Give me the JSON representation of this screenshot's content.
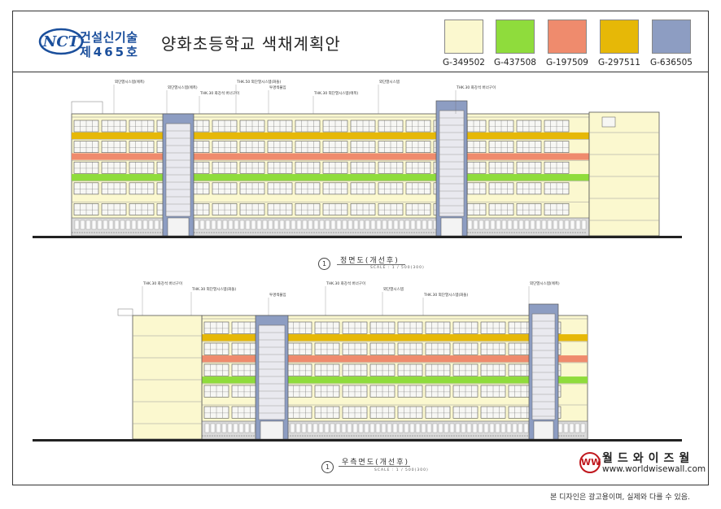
{
  "header": {
    "logo_text": "NCT",
    "cert_line1": "건설신기술",
    "cert_line2": "제465호",
    "title": "양화초등학교 색채계획안"
  },
  "palette": [
    {
      "code": "G-349502",
      "color": "#fbf8cf"
    },
    {
      "code": "G-437508",
      "color": "#8fdc3c"
    },
    {
      "code": "G-197509",
      "color": "#ef8b6d"
    },
    {
      "code": "G-297511",
      "color": "#e6b807"
    },
    {
      "code": "G-636505",
      "color": "#8d9dc2"
    }
  ],
  "elevations": [
    {
      "number": "1",
      "label": "정면도(개선후)",
      "scale": "SCALE : 1 / 500(300)"
    },
    {
      "number": "1",
      "label": "우측면도(개선후)",
      "scale": "SCALE : 1 / 500(300)"
    }
  ],
  "notes_front": [
    "외단열시스템(에폭)",
    "외단열시스템(에폭)",
    "THK.30 화강석 버너구이",
    "THK.50 외단열시스템(화돌)",
    "투명색불임",
    "THK.30 외단열시스템(에폭)",
    "외단열시스템",
    "THK.30 화강석 버너구이"
  ],
  "notes_side": [
    "THK.30 화강석 버너구이",
    "THK.30 외단열시스템(화돌)",
    "투명색불임",
    "THK.30 화강석 버너구이",
    "외단열시스템",
    "THK.30 외단열시스템(화돌)",
    "외단열시스템(에폭)"
  ],
  "brand": {
    "logo": "WW",
    "name": "월드와이즈월",
    "url": "www.worldwisewall.com"
  },
  "disclaimer": "본 디자인은 광고용이며, 실제와 다를 수 있음."
}
